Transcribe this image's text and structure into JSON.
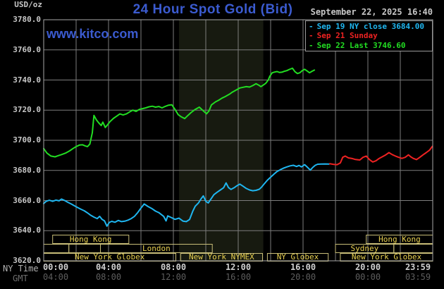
{
  "header": {
    "unit_label": "USD/oz",
    "title": "24 Hour Spot Gold (Bid)",
    "watermark": "www.kitco.com",
    "datetime": "September 22, 2025 16:40"
  },
  "legend": [
    {
      "label": "Sep 19 NY close 3684.00",
      "color": "#1fb6f0"
    },
    {
      "label": "Sep 21 Sunday",
      "color": "#ee2222"
    },
    {
      "label": "Sep 22 Last 3746.60",
      "color": "#22dd22"
    }
  ],
  "colors": {
    "grid": "#7d7d7d",
    "plot_border": "#a8a8a8",
    "nymex_band": "#171a10",
    "session_border": "#c8bd78",
    "session_text": "#e8d050",
    "series_close": "#1fb6f0",
    "series_sunday": "#ee2222",
    "series_today": "#22dd22",
    "accent_blue": "#3b5bd0"
  },
  "chart_data": {
    "type": "line",
    "title": "24 Hour Spot Gold (Bid)",
    "ylabel": "USD/oz",
    "ylim": [
      3620,
      3780
    ],
    "y_step": 20,
    "xlim_hours": [
      0,
      24
    ],
    "x_grid_step_hours": 2,
    "grid": true,
    "legend_position": "top-right",
    "axis_row_labels": {
      "ny": "NY Time",
      "gmt": "GMT"
    },
    "x_ticks": [
      {
        "t": 0,
        "ny": "00:00",
        "gmt": "04:00"
      },
      {
        "t": 4,
        "ny": "04:00",
        "gmt": "08:00"
      },
      {
        "t": 8,
        "ny": "08:00",
        "gmt": "12:00"
      },
      {
        "t": 12,
        "ny": "12:00",
        "gmt": "16:00"
      },
      {
        "t": 16,
        "ny": "16:00",
        "gmt": "20:00"
      },
      {
        "t": 20,
        "ny": "20:00",
        "gmt": "00:00"
      },
      {
        "t": 23.98,
        "ny": "23:59",
        "gmt": "03:59"
      }
    ],
    "highlight_band": {
      "t0": 8.35,
      "t1": 13.55,
      "name": "nymex-session"
    },
    "sessions": [
      {
        "boxes": [
          {
            "t0": 0.55,
            "t1": 5.25,
            "label": "Hong Kong"
          },
          {
            "t0": 19.9,
            "t1": 24,
            "label": "Hong Kong"
          }
        ]
      },
      {
        "boxes": [
          {
            "t0": 0,
            "t1": 1.55,
            "label": ""
          },
          {
            "t0": 1.55,
            "t1": 3.5,
            "label": ""
          },
          {
            "t0": 3.5,
            "t1": 10.4,
            "label": "London"
          },
          {
            "t0": 18,
            "t1": 21.6,
            "label": "Sydney"
          },
          {
            "t0": 21.6,
            "t1": 24,
            "label": ""
          }
        ]
      },
      {
        "boxes": [
          {
            "t0": 0,
            "t1": 8.15,
            "label": "New York Globex"
          },
          {
            "t0": 8.45,
            "t1": 13.5,
            "label": "New York NYMEX"
          },
          {
            "t0": 13.8,
            "t1": 17.55,
            "label": "NY Globex"
          },
          {
            "t0": 18.3,
            "t1": 24,
            "label": "New York Globex"
          }
        ]
      }
    ],
    "series": [
      {
        "name": "Sep 19 NY close",
        "color": "#1fb6f0",
        "close_value": 3684.0,
        "points": [
          [
            0,
            3658
          ],
          [
            0.15,
            3659.5
          ],
          [
            0.35,
            3660.2
          ],
          [
            0.55,
            3659.5
          ],
          [
            0.75,
            3660.3
          ],
          [
            0.95,
            3659.8
          ],
          [
            1.1,
            3661
          ],
          [
            1.3,
            3660
          ],
          [
            1.5,
            3658.8
          ],
          [
            1.7,
            3657.7
          ],
          [
            1.9,
            3656.5
          ],
          [
            2.1,
            3655.3
          ],
          [
            2.3,
            3654.2
          ],
          [
            2.5,
            3653.2
          ],
          [
            2.7,
            3651.8
          ],
          [
            2.9,
            3650.2
          ],
          [
            3.1,
            3649
          ],
          [
            3.3,
            3648
          ],
          [
            3.45,
            3649.5
          ],
          [
            3.6,
            3647.5
          ],
          [
            3.75,
            3646.5
          ],
          [
            3.9,
            3643
          ],
          [
            4.05,
            3645.5
          ],
          [
            4.2,
            3646.2
          ],
          [
            4.4,
            3645.6
          ],
          [
            4.6,
            3646.8
          ],
          [
            4.8,
            3646
          ],
          [
            5,
            3646.3
          ],
          [
            5.2,
            3647
          ],
          [
            5.4,
            3648
          ],
          [
            5.6,
            3649.5
          ],
          [
            5.8,
            3652
          ],
          [
            6,
            3655
          ],
          [
            6.2,
            3657.7
          ],
          [
            6.45,
            3656
          ],
          [
            6.65,
            3654.8
          ],
          [
            6.9,
            3653
          ],
          [
            7.1,
            3652
          ],
          [
            7.4,
            3649.5
          ],
          [
            7.55,
            3646.5
          ],
          [
            7.65,
            3649.8
          ],
          [
            7.85,
            3648.8
          ],
          [
            8.1,
            3647.5
          ],
          [
            8.35,
            3648.3
          ],
          [
            8.6,
            3646.3
          ],
          [
            8.8,
            3646
          ],
          [
            9,
            3647.4
          ],
          [
            9.2,
            3653
          ],
          [
            9.35,
            3656.2
          ],
          [
            9.55,
            3658.4
          ],
          [
            9.7,
            3661
          ],
          [
            9.85,
            3663.1
          ],
          [
            10,
            3659.5
          ],
          [
            10.15,
            3658.4
          ],
          [
            10.35,
            3661.5
          ],
          [
            10.5,
            3663.9
          ],
          [
            10.7,
            3665.5
          ],
          [
            10.9,
            3667
          ],
          [
            11.1,
            3668.5
          ],
          [
            11.25,
            3671.7
          ],
          [
            11.4,
            3668.6
          ],
          [
            11.55,
            3667.4
          ],
          [
            11.75,
            3668.5
          ],
          [
            11.95,
            3670
          ],
          [
            12.1,
            3670.9
          ],
          [
            12.3,
            3669.5
          ],
          [
            12.5,
            3668
          ],
          [
            12.7,
            3667
          ],
          [
            12.9,
            3666.5
          ],
          [
            13.1,
            3666.8
          ],
          [
            13.3,
            3667.5
          ],
          [
            13.45,
            3669
          ],
          [
            13.6,
            3671
          ],
          [
            13.8,
            3673.5
          ],
          [
            14,
            3675.5
          ],
          [
            14.2,
            3677.5
          ],
          [
            14.4,
            3679.3
          ],
          [
            14.6,
            3680.5
          ],
          [
            14.8,
            3681.5
          ],
          [
            15,
            3682.3
          ],
          [
            15.2,
            3683
          ],
          [
            15.4,
            3683.4
          ],
          [
            15.6,
            3682.6
          ],
          [
            15.75,
            3683.3
          ],
          [
            15.9,
            3682.3
          ],
          [
            16.1,
            3683.8
          ],
          [
            16.3,
            3681.8
          ],
          [
            16.45,
            3680.2
          ],
          [
            16.6,
            3682
          ],
          [
            16.75,
            3683.4
          ],
          [
            16.9,
            3684.1
          ],
          [
            17.1,
            3684.2
          ],
          [
            17.35,
            3684.3
          ],
          [
            17.6,
            3684.2
          ]
        ]
      },
      {
        "name": "Sep 21 Sunday",
        "color": "#ee2222",
        "points": [
          [
            17.65,
            3684.4
          ],
          [
            17.9,
            3684
          ],
          [
            18.1,
            3683.8
          ],
          [
            18.3,
            3685
          ],
          [
            18.45,
            3688.7
          ],
          [
            18.6,
            3689.5
          ],
          [
            18.8,
            3688.3
          ],
          [
            19,
            3688
          ],
          [
            19.2,
            3687.3
          ],
          [
            19.5,
            3686.9
          ],
          [
            19.7,
            3688.7
          ],
          [
            19.9,
            3689.5
          ],
          [
            20.1,
            3687.2
          ],
          [
            20.3,
            3685.6
          ],
          [
            20.5,
            3686.4
          ],
          [
            20.7,
            3688
          ],
          [
            20.9,
            3689.1
          ],
          [
            21.1,
            3690.3
          ],
          [
            21.3,
            3691.8
          ],
          [
            21.5,
            3690.5
          ],
          [
            21.7,
            3689.5
          ],
          [
            21.9,
            3688.7
          ],
          [
            22.1,
            3688
          ],
          [
            22.3,
            3688.7
          ],
          [
            22.5,
            3690.3
          ],
          [
            22.65,
            3689
          ],
          [
            22.8,
            3688
          ],
          [
            23,
            3687.2
          ],
          [
            23.2,
            3688.7
          ],
          [
            23.4,
            3690.3
          ],
          [
            23.6,
            3691.8
          ],
          [
            23.8,
            3693.4
          ],
          [
            23.98,
            3696
          ]
        ]
      },
      {
        "name": "Sep 22 Last",
        "color": "#22dd22",
        "last_value": 3746.6,
        "points": [
          [
            0,
            3694.5
          ],
          [
            0.2,
            3691.5
          ],
          [
            0.45,
            3689.5
          ],
          [
            0.7,
            3689
          ],
          [
            0.9,
            3689.8
          ],
          [
            1.1,
            3690.5
          ],
          [
            1.35,
            3691.5
          ],
          [
            1.6,
            3693
          ],
          [
            1.8,
            3694.5
          ],
          [
            2,
            3695.8
          ],
          [
            2.2,
            3696.8
          ],
          [
            2.4,
            3697
          ],
          [
            2.55,
            3696.3
          ],
          [
            2.7,
            3695.8
          ],
          [
            2.85,
            3697.5
          ],
          [
            3,
            3705
          ],
          [
            3.1,
            3716.5
          ],
          [
            3.25,
            3713.5
          ],
          [
            3.4,
            3711.5
          ],
          [
            3.55,
            3709.8
          ],
          [
            3.65,
            3712
          ],
          [
            3.8,
            3708.5
          ],
          [
            3.95,
            3710.5
          ],
          [
            4.1,
            3712.5
          ],
          [
            4.3,
            3714.5
          ],
          [
            4.5,
            3716
          ],
          [
            4.7,
            3717.5
          ],
          [
            4.9,
            3716.8
          ],
          [
            5.1,
            3717.5
          ],
          [
            5.3,
            3718.8
          ],
          [
            5.5,
            3720
          ],
          [
            5.7,
            3719.2
          ],
          [
            5.9,
            3720.5
          ],
          [
            6.1,
            3721
          ],
          [
            6.3,
            3721.5
          ],
          [
            6.5,
            3722.2
          ],
          [
            6.7,
            3722.6
          ],
          [
            6.9,
            3722
          ],
          [
            7.1,
            3722.4
          ],
          [
            7.3,
            3721.5
          ],
          [
            7.5,
            3722.5
          ],
          [
            7.7,
            3723.3
          ],
          [
            7.9,
            3723.6
          ],
          [
            8.1,
            3720.5
          ],
          [
            8.3,
            3717
          ],
          [
            8.5,
            3715.5
          ],
          [
            8.7,
            3714.4
          ],
          [
            8.9,
            3716.5
          ],
          [
            9.1,
            3718.5
          ],
          [
            9.35,
            3720.5
          ],
          [
            9.6,
            3722
          ],
          [
            9.85,
            3719.5
          ],
          [
            10.05,
            3717.6
          ],
          [
            10.2,
            3719.5
          ],
          [
            10.35,
            3723.5
          ],
          [
            10.6,
            3725.5
          ],
          [
            10.8,
            3726.6
          ],
          [
            11,
            3728
          ],
          [
            11.2,
            3729
          ],
          [
            11.45,
            3730.5
          ],
          [
            11.65,
            3732
          ],
          [
            11.9,
            3733.5
          ],
          [
            12.1,
            3734.7
          ],
          [
            12.3,
            3735.2
          ],
          [
            12.5,
            3735.6
          ],
          [
            12.7,
            3735.3
          ],
          [
            12.9,
            3736.3
          ],
          [
            13.1,
            3737.5
          ],
          [
            13.25,
            3736.7
          ],
          [
            13.4,
            3735.6
          ],
          [
            13.55,
            3736.7
          ],
          [
            13.7,
            3737.8
          ],
          [
            13.85,
            3740
          ],
          [
            13.95,
            3742.5
          ],
          [
            14.1,
            3744.8
          ],
          [
            14.25,
            3745.3
          ],
          [
            14.4,
            3745.6
          ],
          [
            14.55,
            3745
          ],
          [
            14.7,
            3745.2
          ],
          [
            14.85,
            3745.8
          ],
          [
            15,
            3746.2
          ],
          [
            15.15,
            3747
          ],
          [
            15.35,
            3747.8
          ],
          [
            15.5,
            3745.5
          ],
          [
            15.65,
            3744.3
          ],
          [
            15.8,
            3744.8
          ],
          [
            15.95,
            3746.2
          ],
          [
            16.1,
            3747.1
          ],
          [
            16.25,
            3746
          ],
          [
            16.4,
            3744.8
          ],
          [
            16.55,
            3745.8
          ],
          [
            16.7,
            3746.6
          ]
        ]
      }
    ]
  }
}
